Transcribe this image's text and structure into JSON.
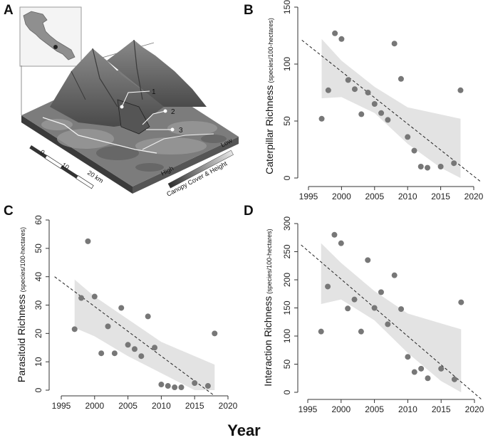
{
  "panel_letters": [
    "A",
    "B",
    "C",
    "D"
  ],
  "shared_xlabel": "Year",
  "map": {
    "site_labels": [
      "1",
      "2",
      "3"
    ],
    "scale_labels": [
      "0",
      "10",
      "20 km"
    ],
    "legend_high": "High",
    "legend_low": "Low",
    "legend_title": "Canopy Cover & Height"
  },
  "chart_data": [
    {
      "panel": "B",
      "type": "scatter",
      "ylabel_main": "Caterpillar Richness",
      "ylabel_sub": "(species/100-hectares)",
      "xlim": [
        1995,
        2020
      ],
      "ylim": [
        0,
        150
      ],
      "xticks": [
        1995,
        2000,
        2005,
        2010,
        2015,
        2020
      ],
      "yticks": [
        0,
        50,
        100,
        150
      ],
      "points": [
        [
          1997,
          52
        ],
        [
          1998,
          77
        ],
        [
          1999,
          127
        ],
        [
          2000,
          122
        ],
        [
          2001,
          86
        ],
        [
          2002,
          78
        ],
        [
          2003,
          56
        ],
        [
          2004,
          75
        ],
        [
          2005,
          65
        ],
        [
          2006,
          57
        ],
        [
          2007,
          51
        ],
        [
          2008,
          118
        ],
        [
          2009,
          87
        ],
        [
          2010,
          36
        ],
        [
          2011,
          24
        ],
        [
          2012,
          10
        ],
        [
          2013,
          9
        ],
        [
          2015,
          10
        ],
        [
          2017,
          13
        ],
        [
          2018,
          77
        ]
      ],
      "trend": [
        [
          1994,
          121
        ],
        [
          2021,
          -3
        ]
      ],
      "ci_band": [
        [
          1997,
          122
        ],
        [
          2000,
          103
        ],
        [
          2005,
          80
        ],
        [
          2010,
          62
        ],
        [
          2018,
          52
        ],
        [
          2018,
          0
        ],
        [
          2015,
          9
        ],
        [
          2010,
          30
        ],
        [
          2005,
          57
        ],
        [
          2000,
          71
        ],
        [
          1997,
          70
        ]
      ]
    },
    {
      "panel": "C",
      "type": "scatter",
      "ylabel_main": "Parasitoid Richness",
      "ylabel_sub": "(species/100-hectares)",
      "xlim": [
        1995,
        2020
      ],
      "ylim": [
        0,
        60
      ],
      "xticks": [
        1995,
        2000,
        2005,
        2010,
        2015,
        2020
      ],
      "yticks": [
        0,
        10,
        20,
        30,
        40,
        50,
        60
      ],
      "points": [
        [
          1997,
          21.5
        ],
        [
          1998,
          32.5
        ],
        [
          1999,
          52.5
        ],
        [
          2000,
          33
        ],
        [
          2001,
          13
        ],
        [
          2002,
          22.5
        ],
        [
          2003,
          13
        ],
        [
          2004,
          29
        ],
        [
          2005,
          16
        ],
        [
          2006,
          14.5
        ],
        [
          2007,
          12
        ],
        [
          2008,
          26
        ],
        [
          2009,
          15
        ],
        [
          2010,
          2
        ],
        [
          2011,
          1.5
        ],
        [
          2012,
          1
        ],
        [
          2013,
          1
        ],
        [
          2015,
          2.5
        ],
        [
          2017,
          1.5
        ],
        [
          2018,
          20
        ]
      ],
      "trend": [
        [
          1994,
          40
        ],
        [
          2018,
          -2
        ]
      ],
      "ci_band": [
        [
          1997,
          39
        ],
        [
          2000,
          33
        ],
        [
          2005,
          25
        ],
        [
          2010,
          17
        ],
        [
          2018,
          9
        ],
        [
          2018,
          0
        ],
        [
          2015,
          0
        ],
        [
          2010,
          6
        ],
        [
          2005,
          12
        ],
        [
          2000,
          19
        ],
        [
          1997,
          22
        ]
      ]
    },
    {
      "panel": "D",
      "type": "scatter",
      "ylabel_main": "Interaction Richness",
      "ylabel_sub": "(species/100-hectares)",
      "xlim": [
        1995,
        2020
      ],
      "ylim": [
        0,
        300
      ],
      "xticks": [
        1995,
        2000,
        2005,
        2010,
        2015,
        2020
      ],
      "yticks": [
        0,
        50,
        100,
        150,
        200,
        250,
        300
      ],
      "points": [
        [
          1997,
          108
        ],
        [
          1998,
          188
        ],
        [
          1999,
          280
        ],
        [
          2000,
          265
        ],
        [
          2001,
          149
        ],
        [
          2002,
          165
        ],
        [
          2003,
          108
        ],
        [
          2004,
          235
        ],
        [
          2005,
          150
        ],
        [
          2006,
          178
        ],
        [
          2007,
          121
        ],
        [
          2008,
          208
        ],
        [
          2009,
          148
        ],
        [
          2010,
          63
        ],
        [
          2011,
          36
        ],
        [
          2012,
          42
        ],
        [
          2013,
          25
        ],
        [
          2015,
          42
        ],
        [
          2017,
          23
        ],
        [
          2018,
          160
        ]
      ],
      "trend": [
        [
          1994,
          262
        ],
        [
          2021,
          -12
        ]
      ],
      "ci_band": [
        [
          1997,
          265
        ],
        [
          2000,
          230
        ],
        [
          2005,
          180
        ],
        [
          2010,
          140
        ],
        [
          2018,
          112
        ],
        [
          2018,
          0
        ],
        [
          2015,
          20
        ],
        [
          2010,
          70
        ],
        [
          2005,
          128
        ],
        [
          2000,
          165
        ],
        [
          1997,
          157
        ]
      ]
    }
  ]
}
